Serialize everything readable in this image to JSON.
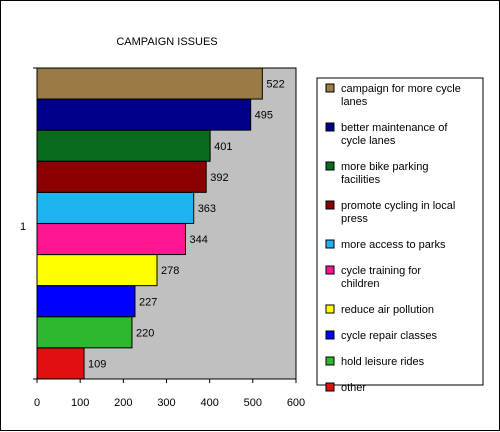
{
  "chart_data": {
    "type": "bar",
    "orientation": "horizontal",
    "title": "CAMPAIGN ISSUES",
    "category_axis_label": "1",
    "xlim": [
      0,
      600
    ],
    "xticks": [
      0,
      100,
      200,
      300,
      400,
      500,
      600
    ],
    "grid": false,
    "plot_background": "#c0c0c0",
    "legend_position": "right",
    "series": [
      {
        "name": "campaign for more cycle lanes",
        "value": 522,
        "color": "#9b7b45"
      },
      {
        "name": "better maintenance of cycle lanes",
        "value": 495,
        "color": "#00008b"
      },
      {
        "name": "more bike parking facilities",
        "value": 401,
        "color": "#0a6a1e"
      },
      {
        "name": "promote cycling in local press",
        "value": 392,
        "color": "#8b0000"
      },
      {
        "name": "more access to parks",
        "value": 363,
        "color": "#1eb4f0"
      },
      {
        "name": "cycle training for children",
        "value": 344,
        "color": "#ff1493"
      },
      {
        "name": "reduce air pollution",
        "value": 278,
        "color": "#ffff00"
      },
      {
        "name": "cycle repair classes",
        "value": 227,
        "color": "#0000ff"
      },
      {
        "name": "hold leisure rides",
        "value": 220,
        "color": "#2db82d"
      },
      {
        "name": "other",
        "value": 109,
        "color": "#e01010"
      }
    ]
  }
}
